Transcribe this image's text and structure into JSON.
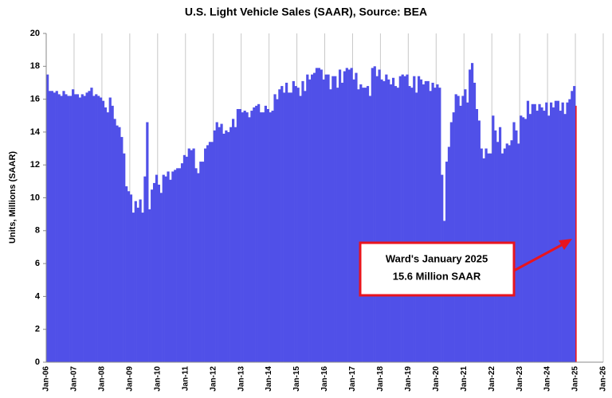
{
  "chart_data": {
    "type": "bar",
    "title": "U.S. Light Vehicle Sales (SAAR), Source: BEA",
    "ylabel": "Units, Millions (SAAR)",
    "annotation": [
      "Ward's January 2025",
      "15.6 Million SAAR"
    ],
    "color": "#5050e8",
    "highlight_color": "#e8141e",
    "annotation_color": "#e8141e",
    "grid": true,
    "ylim": [
      0,
      20
    ],
    "yticks": [
      0,
      2,
      4,
      6,
      8,
      10,
      12,
      14,
      16,
      18,
      20
    ],
    "categories": [
      "Jan-06",
      null,
      null,
      null,
      null,
      null,
      null,
      null,
      null,
      null,
      null,
      null,
      "Jan-07",
      null,
      null,
      null,
      null,
      null,
      null,
      null,
      null,
      null,
      null,
      null,
      "Jan-08",
      null,
      null,
      null,
      null,
      null,
      null,
      null,
      null,
      null,
      null,
      null,
      "Jan-09",
      null,
      null,
      null,
      null,
      null,
      null,
      null,
      null,
      null,
      null,
      null,
      "Jan-10",
      null,
      null,
      null,
      null,
      null,
      null,
      null,
      null,
      null,
      null,
      null,
      "Jan-11",
      null,
      null,
      null,
      null,
      null,
      null,
      null,
      null,
      null,
      null,
      null,
      "Jan-12",
      null,
      null,
      null,
      null,
      null,
      null,
      null,
      null,
      null,
      null,
      null,
      "Jan-13",
      null,
      null,
      null,
      null,
      null,
      null,
      null,
      null,
      null,
      null,
      null,
      "Jan-14",
      null,
      null,
      null,
      null,
      null,
      null,
      null,
      null,
      null,
      null,
      null,
      "Jan-15",
      null,
      null,
      null,
      null,
      null,
      null,
      null,
      null,
      null,
      null,
      null,
      "Jan-16",
      null,
      null,
      null,
      null,
      null,
      null,
      null,
      null,
      null,
      null,
      null,
      "Jan-17",
      null,
      null,
      null,
      null,
      null,
      null,
      null,
      null,
      null,
      null,
      null,
      "Jan-18",
      null,
      null,
      null,
      null,
      null,
      null,
      null,
      null,
      null,
      null,
      null,
      "Jan-19",
      null,
      null,
      null,
      null,
      null,
      null,
      null,
      null,
      null,
      null,
      null,
      "Jan-20",
      null,
      null,
      null,
      null,
      null,
      null,
      null,
      null,
      null,
      null,
      null,
      "Jan-21",
      null,
      null,
      null,
      null,
      null,
      null,
      null,
      null,
      null,
      null,
      null,
      "Jan-22",
      null,
      null,
      null,
      null,
      null,
      null,
      null,
      null,
      null,
      null,
      null,
      "Jan-23",
      null,
      null,
      null,
      null,
      null,
      null,
      null,
      null,
      null,
      null,
      null,
      "Jan-24",
      null,
      null,
      null,
      null,
      null,
      null,
      null,
      null,
      null,
      null,
      null,
      "Jan-25",
      null,
      null,
      null,
      null,
      null,
      null,
      null,
      null,
      null,
      null,
      null,
      "Jan-26"
    ],
    "values": [
      17.5,
      16.5,
      16.5,
      16.4,
      16.5,
      16.3,
      16.2,
      16.5,
      16.3,
      16.2,
      16.2,
      16.6,
      16.3,
      16.3,
      16.1,
      16.3,
      16.2,
      16.4,
      16.5,
      16.7,
      16.2,
      16.3,
      16.2,
      16.1,
      15.9,
      15.5,
      15.2,
      16.1,
      15.6,
      14.8,
      14.4,
      14.3,
      13.7,
      12.7,
      10.7,
      10.4,
      10.2,
      9.1,
      9.8,
      9.4,
      9.9,
      9.1,
      11.3,
      14.6,
      9.3,
      10.5,
      10.9,
      11.4,
      10.8,
      10.3,
      11.4,
      11.3,
      11.6,
      11.1,
      11.6,
      11.7,
      11.8,
      11.8,
      12.1,
      12.6,
      12.5,
      13.0,
      12.9,
      13.0,
      11.8,
      11.5,
      12.2,
      12.2,
      13.0,
      13.2,
      13.4,
      13.4,
      14.1,
      14.6,
      14.3,
      14.5,
      13.9,
      14.1,
      14.0,
      14.3,
      14.8,
      14.3,
      15.4,
      15.4,
      15.2,
      15.3,
      15.2,
      14.9,
      15.3,
      15.5,
      15.6,
      15.7,
      15.2,
      15.2,
      15.6,
      15.4,
      15.2,
      15.3,
      16.3,
      16.0,
      16.6,
      16.8,
      16.4,
      17.0,
      16.4,
      16.4,
      17.1,
      16.8,
      16.7,
      16.2,
      17.1,
      16.5,
      17.5,
      17.2,
      17.5,
      17.6,
      17.9,
      17.9,
      17.8,
      17.2,
      17.5,
      17.5,
      16.6,
      17.4,
      17.4,
      16.7,
      17.8,
      17.0,
      17.7,
      17.9,
      17.8,
      17.9,
      17.2,
      17.6,
      16.6,
      16.9,
      16.7,
      16.7,
      16.8,
      16.2,
      17.9,
      18.0,
      17.4,
      17.8,
      17.2,
      17.1,
      17.5,
      17.2,
      16.9,
      17.3,
      16.8,
      16.7,
      17.4,
      17.5,
      17.4,
      17.5,
      16.8,
      16.7,
      17.4,
      16.4,
      17.4,
      17.2,
      16.9,
      17.1,
      17.1,
      16.5,
      17.0,
      16.7,
      16.9,
      16.7,
      11.4,
      8.6,
      12.2,
      13.1,
      14.6,
      15.2,
      16.3,
      16.2,
      15.6,
      16.2,
      16.6,
      15.8,
      17.8,
      18.2,
      17.0,
      15.4,
      14.7,
      13.0,
      12.4,
      13.0,
      12.7,
      12.7,
      15.0,
      14.1,
      13.4,
      14.3,
      12.7,
      13.0,
      13.3,
      13.2,
      13.5,
      14.6,
      14.1,
      13.3,
      15.0,
      14.9,
      14.8,
      15.9,
      15.1,
      15.7,
      15.7,
      15.3,
      15.7,
      15.5,
      15.3,
      15.8,
      15.0,
      15.8,
      15.5,
      15.9,
      15.9,
      15.3,
      15.8,
      15.1,
      15.8,
      16.0,
      16.5,
      16.8,
      15.6,
      null,
      null,
      null,
      null,
      null,
      null,
      null,
      null,
      null,
      null,
      null,
      null
    ]
  }
}
